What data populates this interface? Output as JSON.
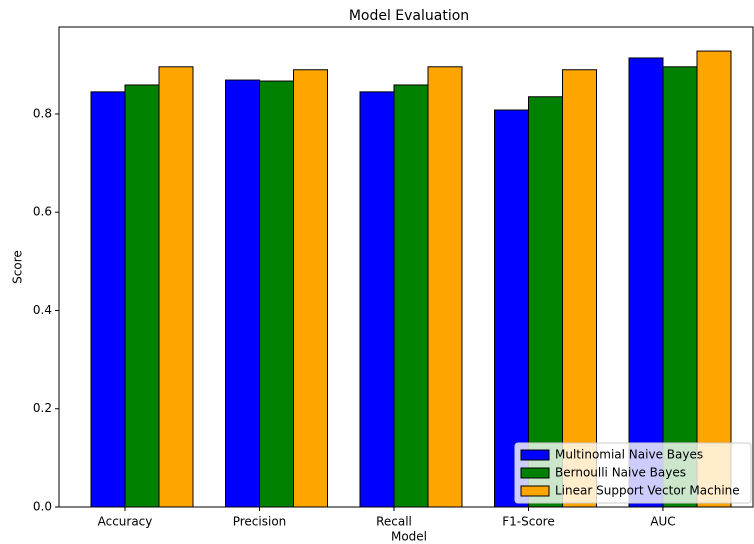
{
  "chart_data": {
    "type": "bar",
    "title": "Model Evaluation",
    "x_label": "Model",
    "y_label": "Score",
    "categories": [
      "Accuracy",
      "Precision",
      "Recall",
      "F1-Score",
      "AUC"
    ],
    "series": [
      {
        "name": "Multinomial Naive Bayes",
        "color": "#0000ff",
        "values": [
          0.845,
          0.869,
          0.845,
          0.808,
          0.914
        ]
      },
      {
        "name": "Bernoulli Naive Bayes",
        "color": "#008000",
        "values": [
          0.859,
          0.867,
          0.859,
          0.835,
          0.896
        ]
      },
      {
        "name": "Linear Support Vector Machine",
        "color": "#ffa500",
        "values": [
          0.896,
          0.89,
          0.896,
          0.89,
          0.928
        ]
      }
    ],
    "ylim": [
      0,
      0.977
    ],
    "yticks": [
      {
        "value": 0,
        "label": "0.0"
      },
      0.2,
      0.4,
      0.6,
      0.8
    ],
    "legend": "lower right"
  }
}
